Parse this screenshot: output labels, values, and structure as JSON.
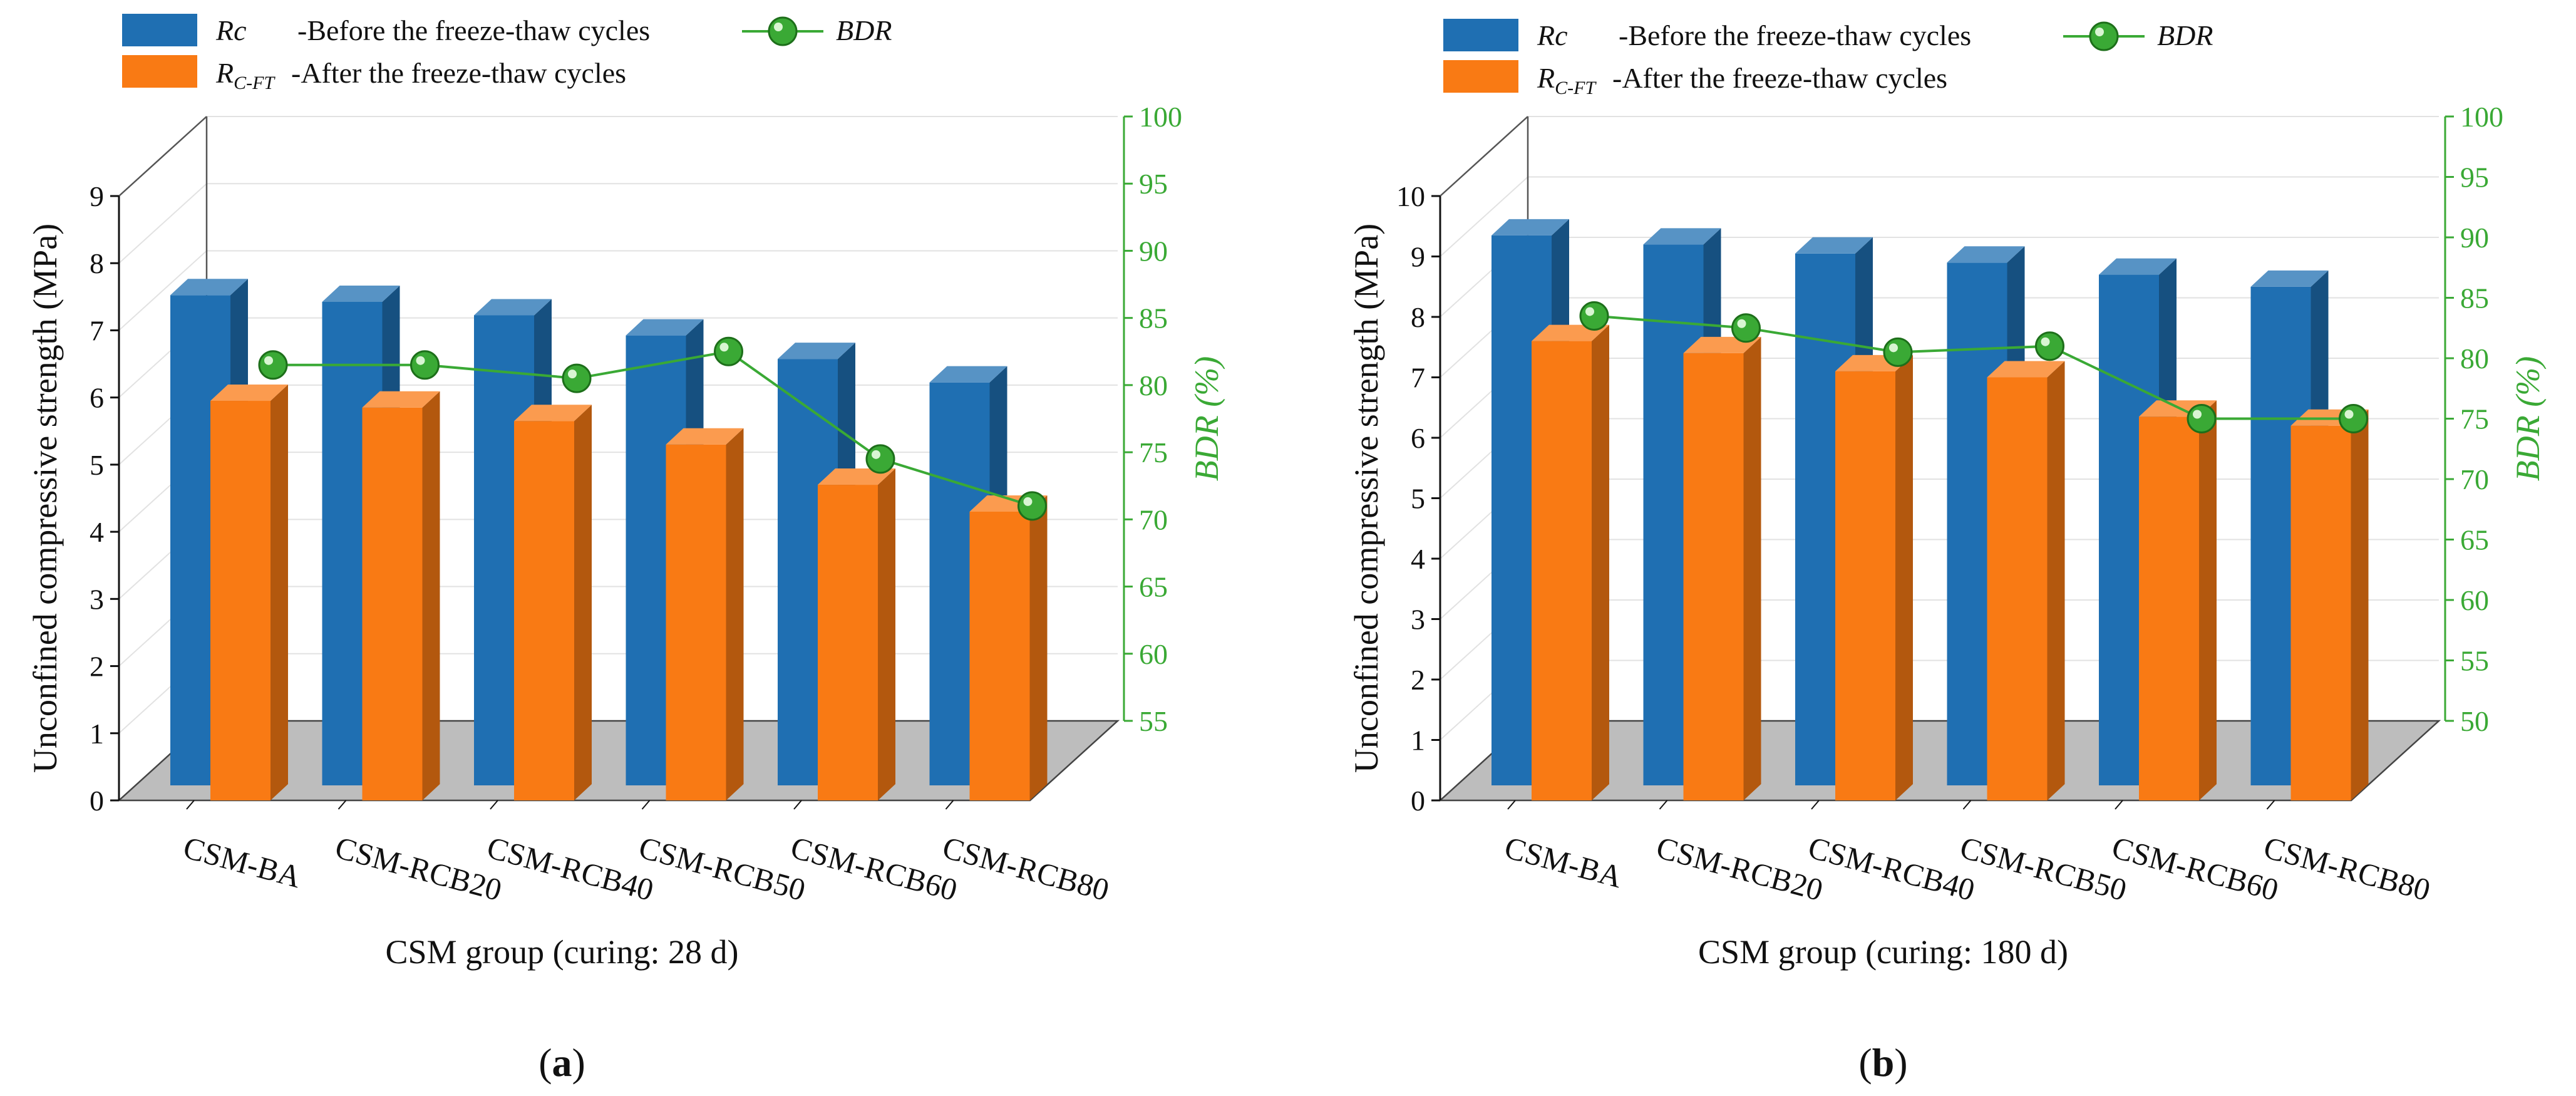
{
  "chart_data": [
    {
      "type": "bar",
      "panel_label": "(a)",
      "panel_letter": "a",
      "categories": [
        "CSM-BA",
        "CSM-RCB20",
        "CSM-RCB40",
        "CSM-RCB50",
        "CSM-RCB60",
        "CSM-RCB80"
      ],
      "series": [
        {
          "name": "Rc",
          "legend_symbol": "Rc",
          "legend_text": "-Before the freeze-thaw cycles",
          "values": [
            7.3,
            7.2,
            7.0,
            6.7,
            6.35,
            6.0
          ],
          "color": "#1f6fb2"
        },
        {
          "name": "RC-FT",
          "legend_symbol": "R",
          "legend_sub": "C-FT",
          "legend_text": "-After the freeze-thaw cycles",
          "values": [
            5.95,
            5.85,
            5.65,
            5.3,
            4.7,
            4.3
          ],
          "color": "#f97a14"
        }
      ],
      "line_series": {
        "name": "BDR",
        "values": [
          81.5,
          81.5,
          80.5,
          82.5,
          74.5,
          71
        ],
        "color": "#3aa935",
        "axis": "right"
      },
      "xlabel": "CSM group (curing: 28 d)",
      "ylabel": "Unconfined compressive strength (MPa)",
      "y2label": "BDR (%)",
      "ylim": [
        0,
        9
      ],
      "y2lim": [
        55,
        100
      ],
      "yticks": [
        0,
        1,
        2,
        3,
        4,
        5,
        6,
        7,
        8,
        9
      ],
      "y2ticks": [
        55,
        60,
        65,
        70,
        75,
        80,
        85,
        90,
        95,
        100
      ],
      "legend_position": "top"
    },
    {
      "type": "bar",
      "panel_label": "(b)",
      "panel_letter": "b",
      "categories": [
        "CSM-BA",
        "CSM-RCB20",
        "CSM-RCB40",
        "CSM-RCB50",
        "CSM-RCB60",
        "CSM-RCB80"
      ],
      "series": [
        {
          "name": "Rc",
          "legend_symbol": "Rc",
          "legend_text": "-Before the freeze-thaw cycles",
          "values": [
            9.1,
            8.95,
            8.8,
            8.65,
            8.45,
            8.25
          ],
          "color": "#1f6fb2"
        },
        {
          "name": "RC-FT",
          "legend_symbol": "R",
          "legend_sub": "C-FT",
          "legend_text": "-After the freeze-thaw cycles",
          "values": [
            7.6,
            7.4,
            7.1,
            7.0,
            6.35,
            6.2
          ],
          "color": "#f97a14"
        }
      ],
      "line_series": {
        "name": "BDR",
        "values": [
          83.5,
          82.5,
          80.5,
          81,
          75,
          75
        ],
        "color": "#3aa935",
        "axis": "right"
      },
      "xlabel": "CSM group (curing: 180 d)",
      "ylabel": "Unconfined compressive strength (MPa)",
      "y2label": "BDR (%)",
      "ylim": [
        0,
        10
      ],
      "y2lim": [
        50,
        100
      ],
      "yticks": [
        0,
        1,
        2,
        3,
        4,
        5,
        6,
        7,
        8,
        9,
        10
      ],
      "y2ticks": [
        50,
        55,
        60,
        65,
        70,
        75,
        80,
        85,
        90,
        95,
        100
      ],
      "legend_position": "top"
    }
  ]
}
